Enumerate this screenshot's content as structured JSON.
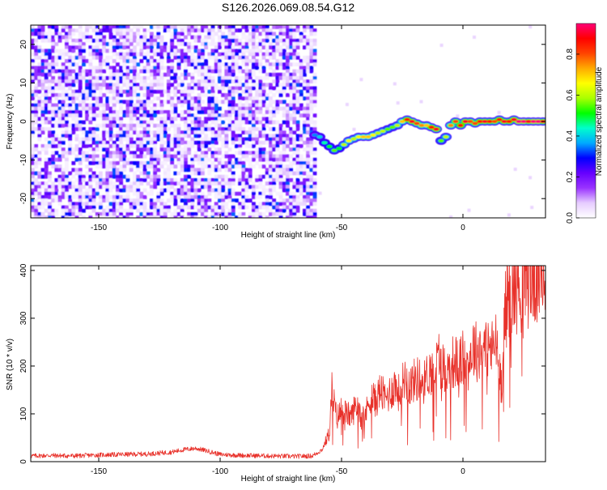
{
  "figure": {
    "title": "S126.2026.069.08.54.G12"
  },
  "chart_data": [
    {
      "type": "heatmap",
      "title": "S126.2026.069.08.54.G12",
      "xlabel": "Height of straight line (km)",
      "ylabel": "Frequency (Hz)",
      "xlim": [
        -178,
        34
      ],
      "ylim": [
        -25,
        25
      ],
      "xticks": [
        -150,
        -100,
        -50,
        0
      ],
      "yticks": [
        -20,
        -10,
        0,
        10,
        20
      ],
      "colorbar": {
        "label": "Normalized spectral amplitude",
        "range": [
          0,
          0.95
        ],
        "ticks": [
          "0.0",
          "0.2",
          "0.4",
          "0.6",
          "0.8"
        ],
        "tick_values": [
          0,
          0.2,
          0.4,
          0.6,
          0.8
        ],
        "colors": [
          "#ffffff",
          "#e6ccff",
          "#9933ff",
          "#6600ff",
          "#0000ff",
          "#00aaff",
          "#00ffcc",
          "#00ff00",
          "#aaff00",
          "#ffff00",
          "#ffaa00",
          "#ff4400",
          "#ff0000",
          "#ff0077"
        ]
      },
      "noise_region": {
        "x_range": [
          -178,
          -61
        ],
        "description_amplitude": "low (0.0-0.35)"
      },
      "ridge": {
        "x": [
          -61,
          -59,
          -57,
          -55,
          -53,
          -51,
          -49,
          -47,
          -45,
          -43,
          -41,
          -39,
          -37,
          -35,
          -33,
          -31,
          -29,
          -27,
          -25,
          -23,
          -21,
          -19,
          -17,
          -15,
          -13,
          -11,
          -9,
          -7,
          -5,
          -3,
          -1,
          1,
          3,
          5,
          7,
          9,
          11,
          13,
          15,
          17,
          19,
          21,
          23,
          25,
          27,
          29,
          31,
          33
        ],
        "freq": [
          -3.5,
          -4,
          -5.5,
          -6.5,
          -7.5,
          -7,
          -6,
          -5,
          -4.5,
          -4,
          -4,
          -4,
          -3.5,
          -3,
          -2.5,
          -2,
          -1.5,
          -1,
          0,
          0.5,
          0,
          -0.5,
          -1,
          -1,
          -1.5,
          -2,
          -5,
          -4,
          -1,
          0,
          -1,
          0,
          0,
          -0.5,
          0,
          0,
          0,
          0,
          0.5,
          0,
          0,
          0.5,
          0,
          0,
          0,
          0,
          0,
          0
        ],
        "amplitude": [
          0.35,
          0.4,
          0.45,
          0.5,
          0.55,
          0.5,
          0.6,
          0.65,
          0.6,
          0.65,
          0.7,
          0.7,
          0.65,
          0.6,
          0.6,
          0.55,
          0.55,
          0.6,
          0.7,
          0.85,
          0.9,
          0.8,
          0.75,
          0.7,
          0.85,
          0.9,
          0.55,
          0.6,
          0.75,
          0.8,
          0.85,
          0.9,
          0.8,
          0.8,
          0.85,
          0.9,
          0.85,
          0.8,
          0.85,
          0.9,
          0.85,
          0.9,
          0.95,
          0.95,
          0.9,
          0.95,
          0.95,
          0.9
        ]
      }
    },
    {
      "type": "line",
      "xlabel": "Height of straight line (km)",
      "ylabel": "SNR (10 * v/v)",
      "xlim": [
        -178,
        34
      ],
      "ylim": [
        0,
        410
      ],
      "xticks": [
        -150,
        -100,
        -50,
        0
      ],
      "yticks": [
        0,
        100,
        200,
        300,
        400
      ],
      "color": "#e8312a",
      "series": [
        {
          "name": "SNR",
          "x": [
            -178,
            -170,
            -160,
            -150,
            -140,
            -130,
            -120,
            -115,
            -110,
            -105,
            -100,
            -90,
            -80,
            -70,
            -62,
            -58,
            -55,
            -54,
            -52,
            -50,
            -48,
            -46,
            -44,
            -42,
            -40,
            -38,
            -36,
            -34,
            -32,
            -30,
            -28,
            -26,
            -24,
            -22,
            -20,
            -18,
            -16,
            -14,
            -12,
            -10,
            -8,
            -6,
            -4,
            -2,
            0,
            2,
            4,
            6,
            8,
            10,
            12,
            14,
            15,
            16,
            17,
            18,
            20,
            22,
            24,
            26,
            28,
            30,
            32,
            34
          ],
          "y": [
            12,
            13,
            12,
            14,
            15,
            16,
            20,
            25,
            28,
            22,
            15,
            13,
            12,
            11,
            12,
            25,
            60,
            150,
            90,
            110,
            100,
            95,
            120,
            110,
            100,
            140,
            125,
            150,
            130,
            145,
            160,
            140,
            180,
            160,
            170,
            175,
            165,
            190,
            185,
            220,
            195,
            190,
            210,
            205,
            215,
            200,
            240,
            230,
            245,
            240,
            235,
            250,
            190,
            160,
            300,
            330,
            350,
            370,
            365,
            380,
            385,
            390,
            395,
            398
          ]
        }
      ]
    }
  ]
}
